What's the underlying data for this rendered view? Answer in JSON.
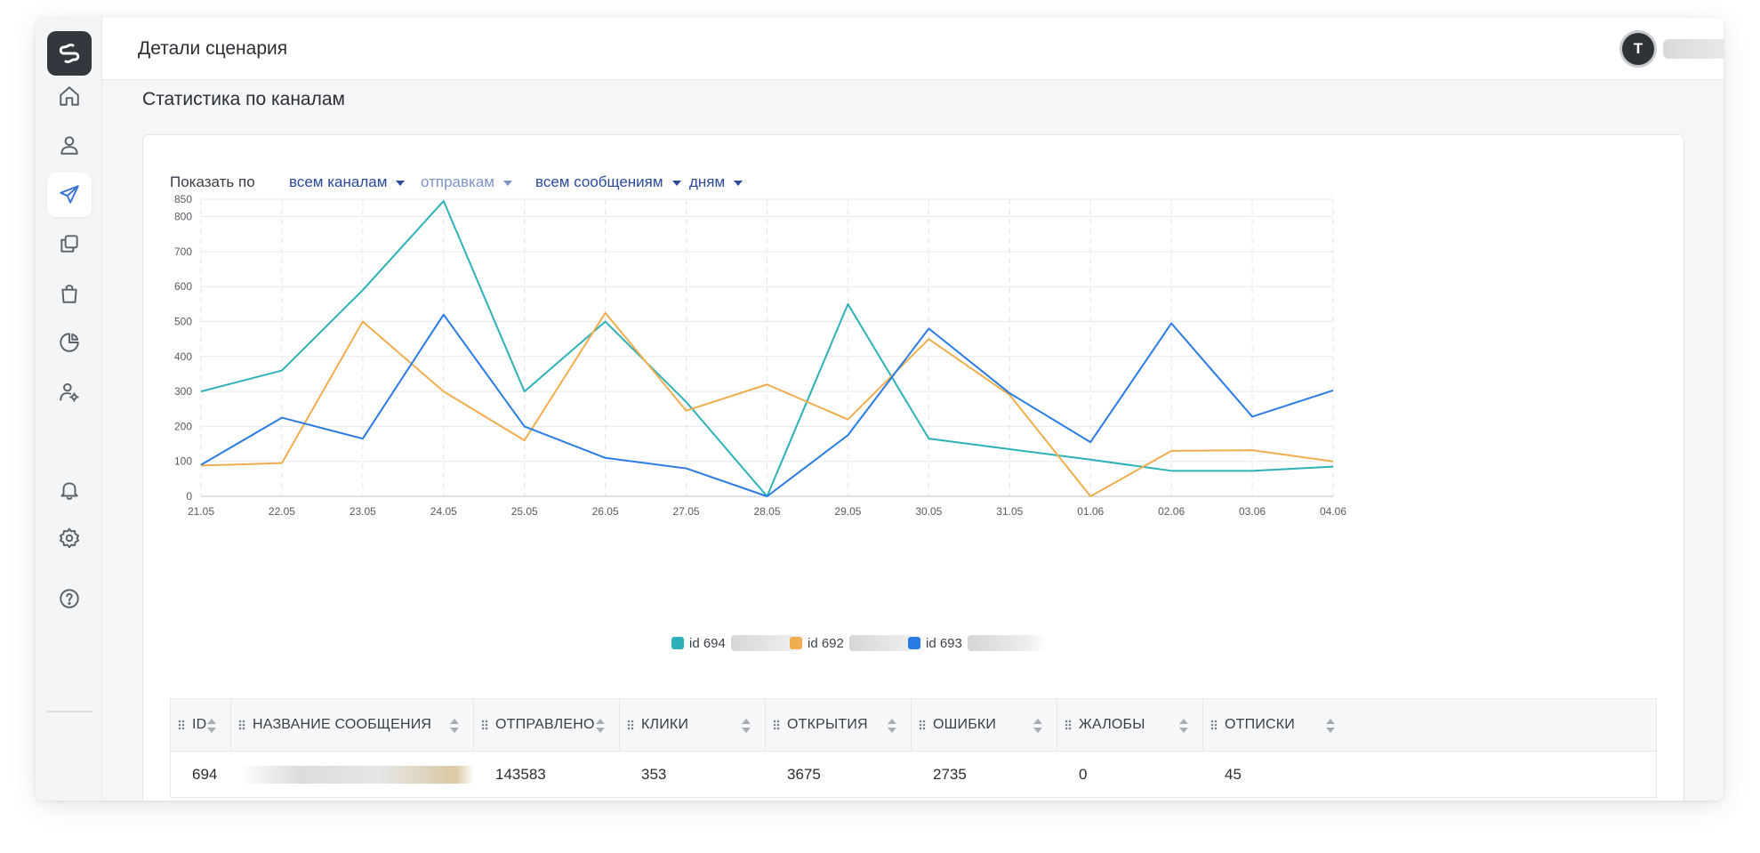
{
  "header": {
    "title": "Детали сценария",
    "avatar_initial": "T"
  },
  "section": {
    "title": "Статистика по каналам"
  },
  "sidebar": {
    "items": [
      {
        "name": "home",
        "icon": "home-icon",
        "active": false
      },
      {
        "name": "contacts",
        "icon": "user-icon",
        "active": false
      },
      {
        "name": "campaigns",
        "icon": "send-icon",
        "active": true
      },
      {
        "name": "templates",
        "icon": "copy-icon",
        "active": false
      },
      {
        "name": "shop",
        "icon": "bag-icon",
        "active": false
      },
      {
        "name": "analytics",
        "icon": "pie-chart-icon",
        "active": false
      },
      {
        "name": "users-settings",
        "icon": "user-gear-icon",
        "active": false
      },
      {
        "name": "notifications",
        "icon": "bell-icon",
        "active": false
      },
      {
        "name": "settings",
        "icon": "gear-icon",
        "active": false
      },
      {
        "name": "help",
        "icon": "question-icon",
        "active": false
      }
    ]
  },
  "filters": {
    "label": "Показать по",
    "channel": "всем каналам",
    "metric": "отправкам",
    "messages": "всем сообщениям",
    "period": "дням"
  },
  "colors": {
    "accent": "#3a74d8",
    "series_694": "#2cb1b8",
    "series_692": "#f0ad4e",
    "series_693": "#2a7be4"
  },
  "legend": [
    {
      "label": "id 694",
      "color": "#2cb1b8"
    },
    {
      "label": "id 692",
      "color": "#f0ad4e"
    },
    {
      "label": "id 693",
      "color": "#2a7be4"
    }
  ],
  "chart_data": {
    "type": "line",
    "x": [
      "21.05",
      "22.05",
      "23.05",
      "24.05",
      "25.05",
      "26.05",
      "27.05",
      "28.05",
      "29.05",
      "30.05",
      "31.05",
      "01.06",
      "02.06",
      "03.06",
      "04.06"
    ],
    "yticks": [
      0,
      100,
      200,
      300,
      400,
      500,
      600,
      700,
      800,
      850
    ],
    "ylim": [
      0,
      850
    ],
    "grid": true,
    "legend_position": "bottom",
    "series": [
      {
        "name": "id 694",
        "color": "#2cb1b8",
        "values": [
          300,
          360,
          590,
          845,
          300,
          500,
          270,
          0,
          550,
          165,
          135,
          105,
          73,
          73,
          85
        ]
      },
      {
        "name": "id 692",
        "color": "#f0ad4e",
        "values": [
          88,
          95,
          500,
          300,
          160,
          525,
          245,
          320,
          220,
          450,
          290,
          0,
          130,
          132,
          100
        ]
      },
      {
        "name": "id 693",
        "color": "#2a7be4",
        "values": [
          90,
          225,
          165,
          520,
          200,
          110,
          80,
          0,
          175,
          480,
          295,
          155,
          495,
          228,
          303
        ]
      }
    ]
  },
  "table": {
    "columns": [
      "ID",
      "НАЗВАНИЕ СООБЩЕНИЯ",
      "ОТПРАВЛЕНО",
      "КЛИКИ",
      "ОТКРЫТИЯ",
      "ОШИБКИ",
      "ЖАЛОБЫ",
      "ОТПИСКИ"
    ],
    "rows": [
      {
        "id": "694",
        "sent": "143583",
        "clicks": "353",
        "opens": "3675",
        "errors": "2735",
        "complaints": "0",
        "unsubscribes": "45"
      }
    ]
  }
}
